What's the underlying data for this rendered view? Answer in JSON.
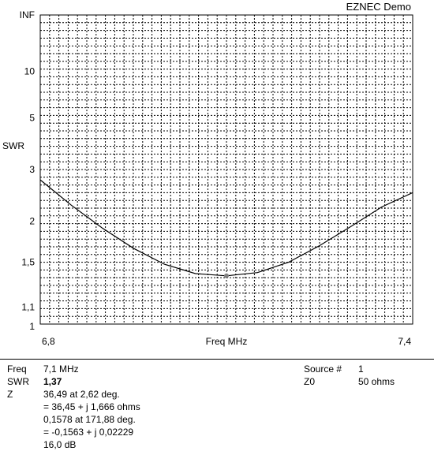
{
  "header": {
    "app_title": "EZNEC Demo"
  },
  "chart_data": {
    "type": "line",
    "title": "",
    "xlabel": "Freq MHz",
    "ylabel": "SWR",
    "x_ticks": [
      "6,8",
      "7,4"
    ],
    "xlim": [
      6.8,
      7.4
    ],
    "ylim": [
      1,
      "INF"
    ],
    "y_scale": "reflection-coefficient (SWR)",
    "y_ticks": [
      {
        "label": "INF",
        "value": null
      },
      {
        "label": "10",
        "value": 10
      },
      {
        "label": "5",
        "value": 5
      },
      {
        "label": "3",
        "value": 3
      },
      {
        "label": "2",
        "value": 2
      },
      {
        "label": "1,5",
        "value": 1.5
      },
      {
        "label": "1,1",
        "value": 1.1
      },
      {
        "label": "1",
        "value": 1
      }
    ],
    "grid": true,
    "series": [
      {
        "x": [
          6.8,
          6.85,
          6.9,
          6.95,
          7.0,
          7.05,
          7.1,
          7.15,
          7.2,
          7.25,
          7.3,
          7.35,
          7.4
        ],
        "y": [
          2.75,
          2.25,
          1.9,
          1.65,
          1.48,
          1.39,
          1.37,
          1.4,
          1.5,
          1.68,
          1.92,
          2.22,
          2.48
        ]
      }
    ],
    "marker": {
      "x": 7.1,
      "y": 1.37
    },
    "colors": {
      "line": "#000000",
      "grid": "#000000",
      "marker": "#808080"
    }
  },
  "readout": {
    "freq_label": "Freq",
    "freq_value": "7,1 MHz",
    "swr_label": "SWR",
    "swr_value": "1,37",
    "z_label": "Z",
    "z_lines": [
      "36,49 at 2,62 deg.",
      "= 36,45 + j 1,666 ohms",
      "0,1578 at 171,88 deg.",
      "= -0,1563 + j 0,02229",
      "16,0 dB"
    ],
    "source_label": "Source #",
    "source_value": "1",
    "z0_label": "Z0",
    "z0_value": "50 ohms"
  }
}
